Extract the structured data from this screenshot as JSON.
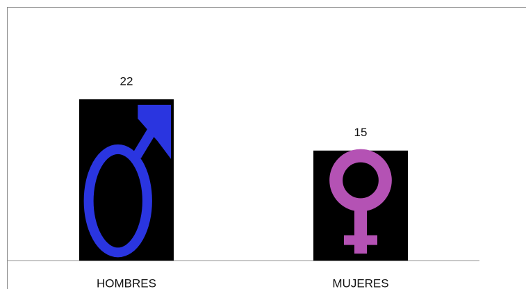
{
  "chart_data": {
    "type": "bar",
    "categories": [
      "HOMBRES",
      "MUJERES"
    ],
    "values": [
      22,
      15
    ],
    "color": "#000000",
    "symbol_colors": [
      "#2a35e0",
      "#b452b4"
    ]
  }
}
